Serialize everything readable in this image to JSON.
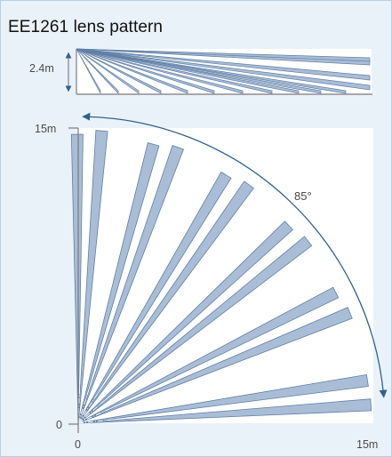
{
  "title": "EE1261 lens pattern",
  "side_view": {
    "height_label": "2.4m"
  },
  "top_view": {
    "y_max_label": "15m",
    "origin_label": "0",
    "x_origin_label": "0",
    "x_max_label": "15m",
    "angle_label": "85°",
    "beam_pairs": 6,
    "beams_per_pair": 2
  },
  "colors": {
    "background": "#eaf2f9",
    "beam_fill": "#aabdd6",
    "beam_stroke": "#5f7fa6",
    "arc": "#2f628f",
    "axis": "#7a7a7a",
    "label": "#4a4a4a",
    "panel": "#ffffff"
  }
}
